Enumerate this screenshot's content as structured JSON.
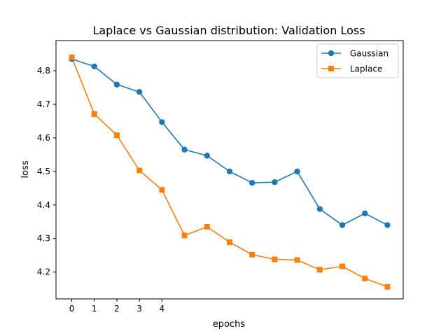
{
  "chart_data": {
    "type": "line",
    "title": "Laplace vs Gaussian distribution: Validation Loss",
    "xlabel": "epochs",
    "ylabel": "loss",
    "xticks": [
      0,
      1,
      2,
      3,
      4
    ],
    "yticks": [
      4.2,
      4.3,
      4.4,
      4.5,
      4.6,
      4.7,
      4.8
    ],
    "xlim": [
      -0.7,
      14.7
    ],
    "ylim": [
      4.12,
      4.89
    ],
    "x": [
      0,
      1,
      2,
      3,
      4,
      5,
      6,
      7,
      8,
      9,
      10,
      11,
      12,
      13,
      14
    ],
    "legend_position": "top-right",
    "grid": false,
    "series": [
      {
        "name": "Gaussian",
        "color": "#1f77b4",
        "marker": "circle",
        "values": [
          4.835,
          4.813,
          4.759,
          4.737,
          4.647,
          4.565,
          4.547,
          4.5,
          4.466,
          4.468,
          4.5,
          4.388,
          4.34,
          4.375,
          4.34
        ]
      },
      {
        "name": "Laplace",
        "color": "#ff7f0e",
        "marker": "square",
        "values": [
          4.84,
          4.671,
          4.608,
          4.503,
          4.445,
          4.309,
          4.335,
          4.289,
          4.252,
          4.238,
          4.236,
          4.207,
          4.217,
          4.181,
          4.156
        ]
      }
    ]
  }
}
